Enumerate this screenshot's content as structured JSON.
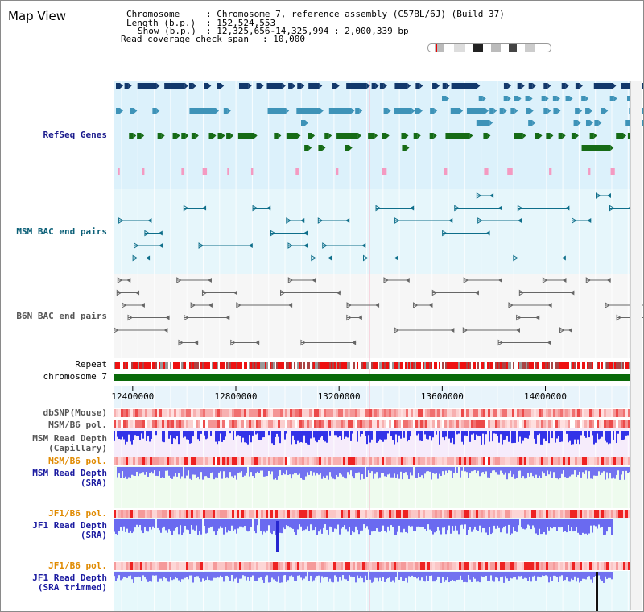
{
  "window": {
    "title": "Map View"
  },
  "info": {
    "chromosome_label": "Chromosome",
    "chromosome_value": ": Chromosome 7, reference assembly (C57BL/6J) (Build 37)",
    "length_label": "Length (b.p.)",
    "length_value": ": 152,524,553",
    "show_label": "Show (b.p.)",
    "show_value": ": 12,325,656-14,325,994 : 2,000,339 bp",
    "read_coverage_label": "Read coverage check span",
    "read_coverage_value": ": 10,000"
  },
  "tracks": {
    "refseq": "RefSeq Genes",
    "msm_bac": "MSM BAC end pairs",
    "b6n_bac": "B6N BAC end pairs",
    "repeat": "Repeat",
    "chromosome": "chromosome 7",
    "dbsnp": "dbSNP(Mouse)",
    "msm_b6_pol_1": "MSM/B6 pol.",
    "msm_read_depth_cap_1": "MSM Read Depth",
    "msm_read_depth_cap_2": "(Capillary)",
    "msm_b6_pol_2": "MSM/B6 pol.",
    "msm_read_depth_sra_1": "MSM Read Depth",
    "msm_read_depth_sra_2": "(SRA)",
    "jf1_b6_pol_1": "JF1/B6 pol.",
    "jf1_read_depth_sra_1": "JF1 Read Depth",
    "jf1_read_depth_sra_2": "(SRA)",
    "jf1_b6_pol_2": "JF1/B6 pol.",
    "jf1_read_depth_trim_1": "JF1 Read Depth",
    "jf1_read_depth_trim_2": "(SRA trimmed)"
  },
  "axis": {
    "ticks": [
      {
        "label": "12400000",
        "pos": 12400000
      },
      {
        "label": "12800000",
        "pos": 12800000
      },
      {
        "label": "13200000",
        "pos": 13200000
      },
      {
        "label": "13600000",
        "pos": 13600000
      },
      {
        "label": "14000000",
        "pos": 14000000
      }
    ],
    "start": 12325656,
    "end": 14325994
  },
  "colors": {
    "refseq_label": "#1a1a8c",
    "msm_bac_label": "#0b5f77",
    "b6n_bac_label": "#555555",
    "read_depth_label": "#1a1aa0",
    "pol_label_orange": "#e08a00",
    "dark_label": "#555555",
    "gene_dark_blue": "#12386b",
    "gene_teal": "#3e93b8",
    "gene_green": "#166b16",
    "gene_pink": "#f49ac1",
    "bac_teal": "#0e6e8a",
    "bac_gray": "#666666",
    "chromosome_green": "#0a6a0a"
  }
}
